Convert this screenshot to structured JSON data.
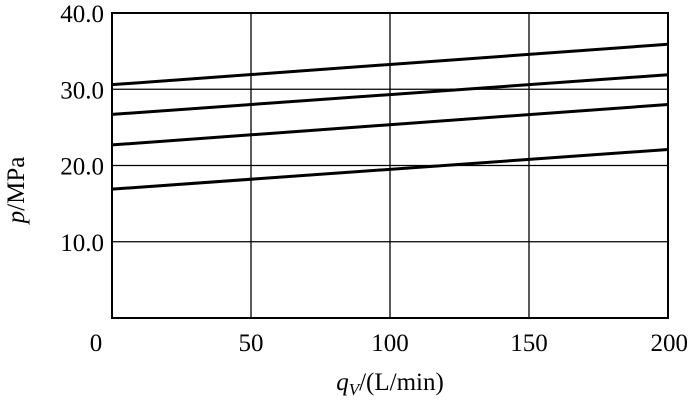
{
  "chart_data": {
    "type": "line",
    "title": "",
    "x_axis": {
      "label_symbol": "q",
      "label_subscript": "V",
      "label_unit": "/(L/min)",
      "range": [
        0,
        200
      ],
      "ticks": [
        {
          "value": 0,
          "label": "0"
        },
        {
          "value": 50,
          "label": "50"
        },
        {
          "value": 100,
          "label": "100"
        },
        {
          "value": 150,
          "label": "150"
        },
        {
          "value": 200,
          "label": "200"
        }
      ]
    },
    "y_axis": {
      "label_symbol": "p",
      "label_unit": "/MPa",
      "range": [
        0,
        40
      ],
      "ticks": [
        {
          "value": 10,
          "label": "10.0"
        },
        {
          "value": 20,
          "label": "20.0"
        },
        {
          "value": 30,
          "label": "30.0"
        },
        {
          "value": 40,
          "label": "40.0"
        }
      ]
    },
    "grid": true,
    "series": [
      {
        "x": [
          0,
          200
        ],
        "y": [
          30.6,
          35.9
        ]
      },
      {
        "x": [
          0,
          200
        ],
        "y": [
          26.7,
          31.9
        ]
      },
      {
        "x": [
          0,
          200
        ],
        "y": [
          22.7,
          28.0
        ]
      },
      {
        "x": [
          0,
          200
        ],
        "y": [
          16.9,
          22.1
        ]
      }
    ]
  }
}
